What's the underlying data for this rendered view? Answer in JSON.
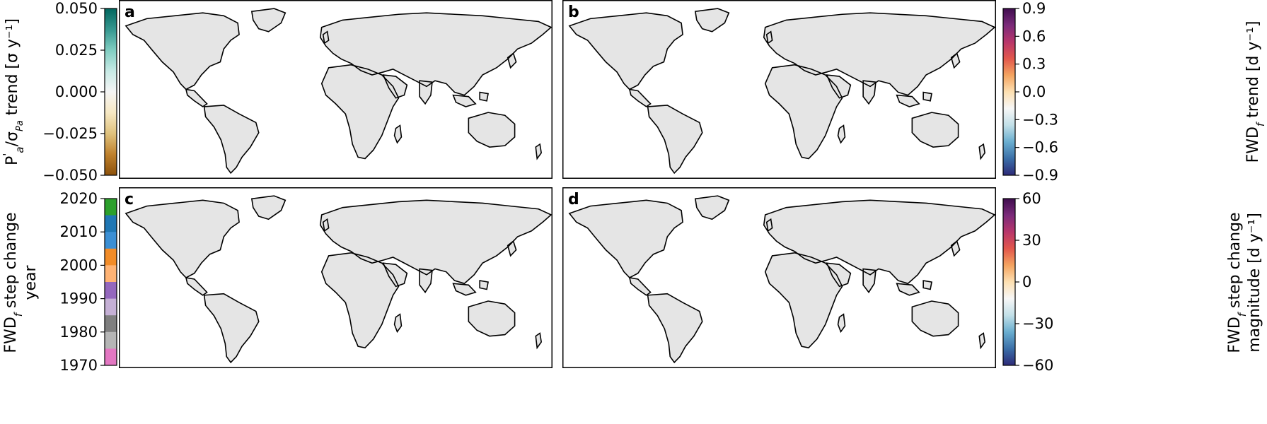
{
  "chart_data": [
    {
      "type": "map",
      "panel": "a",
      "colorbar": {
        "label": "P'_a/σ_Pa trend [σ y⁻¹]",
        "label_parts": {
          "prefix": "P",
          "sup": "'",
          "sub": "a",
          "slash": "/σ",
          "sub2": "Pa",
          "suffix": " trend [σ y⁻¹]"
        },
        "ticks": [
          "0.050",
          "0.025",
          "0.000",
          "−0.025",
          "−0.050"
        ],
        "range": [
          -0.05,
          0.05
        ],
        "colors": [
          "#01665e",
          "#35978f",
          "#80cdc1",
          "#c7eae5",
          "#f5f5f5",
          "#f6e8c3",
          "#dfc27d",
          "#bf812d",
          "#8c510a"
        ]
      }
    },
    {
      "type": "map",
      "panel": "b",
      "colorbar": {
        "label": "FWD_f trend [d y⁻¹]",
        "label_parts": {
          "prefix": "FWD",
          "sub": "f",
          "suffix": " trend [d y⁻¹]"
        },
        "ticks": [
          "0.9",
          "0.6",
          "0.3",
          "0.0",
          "−0.3",
          "−0.6",
          "−0.9"
        ],
        "range": [
          -0.9,
          0.9
        ],
        "colors": [
          "#3f0d4e",
          "#7b2a7a",
          "#b8366b",
          "#e2574c",
          "#f4a460",
          "#fde0b2",
          "#f7f7f7",
          "#c2e0e8",
          "#6aaed0",
          "#3b6fa8",
          "#2d2a78"
        ]
      }
    },
    {
      "type": "map",
      "panel": "c",
      "colorbar": {
        "label_line1": "FWD_f step change",
        "label_line1_parts": {
          "prefix": "FWD",
          "sub": "f",
          "suffix": " step change"
        },
        "label_line2": "year",
        "ticks": [
          "2020",
          "2010",
          "2000",
          "1990",
          "1980",
          "1970"
        ],
        "range": [
          1970,
          2020
        ],
        "colors": [
          "#2ca02c",
          "#1f77b4",
          "#3b8fd4",
          "#f28c28",
          "#ffb374",
          "#9467bd",
          "#c5b0d5",
          "#7f7f7f",
          "#b5b5b5",
          "#e377c2"
        ]
      }
    },
    {
      "type": "map",
      "panel": "d",
      "colorbar": {
        "label_line1": "FWD_f step change",
        "label_line1_parts": {
          "prefix": "FWD",
          "sub": "f",
          "suffix": " step change"
        },
        "label_line2": "magnitude [d y⁻¹]",
        "ticks": [
          "60",
          "30",
          "0",
          "−30",
          "−60"
        ],
        "range": [
          -60,
          60
        ],
        "colors": [
          "#3f0d4e",
          "#7b2a7a",
          "#b8366b",
          "#e2574c",
          "#f4a460",
          "#fde0b2",
          "#f7f7f7",
          "#c2e0e8",
          "#6aaed0",
          "#3b6fa8",
          "#2d2a78"
        ]
      }
    }
  ]
}
